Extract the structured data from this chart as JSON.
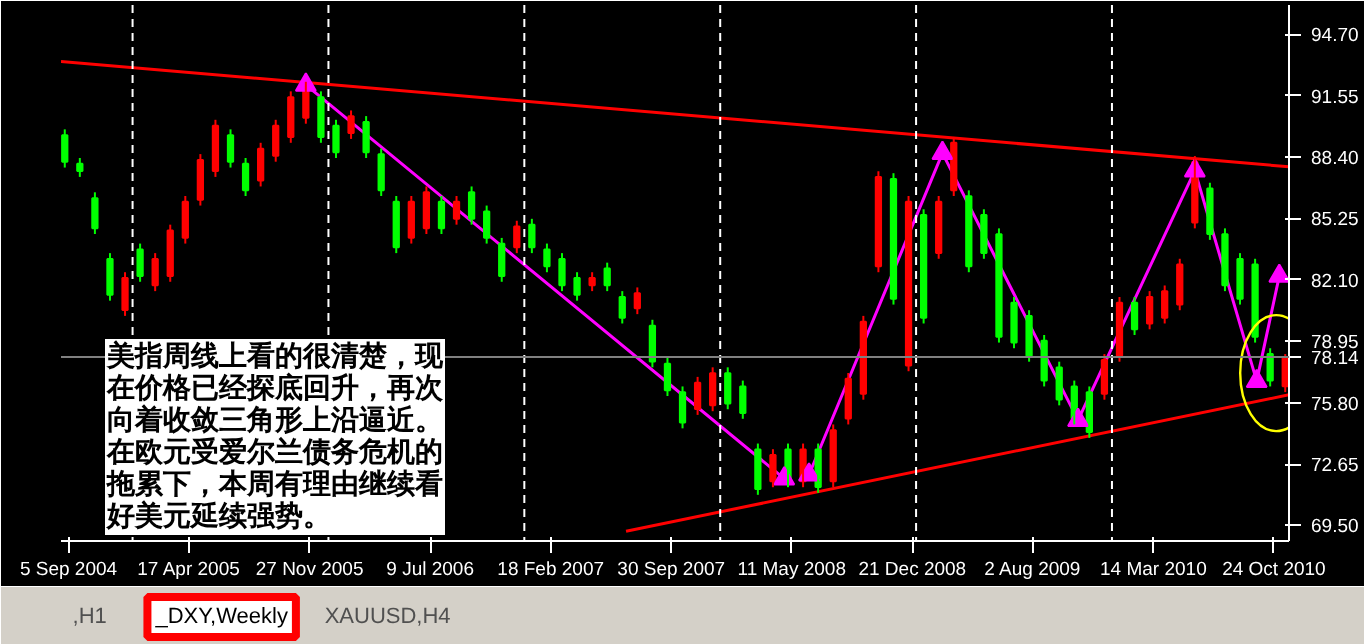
{
  "chart_data": {
    "type": "candlestick",
    "x": [
      "2004-08-29",
      "2004-09-26",
      "2004-10-24",
      "2004-11-21",
      "2004-12-19",
      "2005-01-16",
      "2005-02-13",
      "2005-03-13",
      "2005-04-10",
      "2005-05-08",
      "2005-06-05",
      "2005-07-03",
      "2005-07-31",
      "2005-08-28",
      "2005-09-25",
      "2005-10-23",
      "2005-11-20",
      "2005-12-18",
      "2006-01-15",
      "2006-02-12",
      "2006-03-12",
      "2006-04-09",
      "2006-05-07",
      "2006-06-04",
      "2006-07-02",
      "2006-07-30",
      "2006-08-27",
      "2006-09-24",
      "2006-10-22",
      "2006-11-19",
      "2006-12-17",
      "2007-01-14",
      "2007-02-11",
      "2007-03-11",
      "2007-04-08",
      "2007-05-06",
      "2007-06-03",
      "2007-07-01",
      "2007-07-29",
      "2007-08-26",
      "2007-09-23",
      "2007-10-21",
      "2007-11-18",
      "2007-12-16",
      "2008-01-13",
      "2008-02-10",
      "2008-03-09",
      "2008-04-06",
      "2008-05-04",
      "2008-06-01",
      "2008-06-29",
      "2008-07-27",
      "2008-08-24",
      "2008-09-21",
      "2008-10-19",
      "2008-11-16",
      "2008-12-14",
      "2009-01-11",
      "2009-02-08",
      "2009-03-08",
      "2009-04-05",
      "2009-05-03",
      "2009-05-31",
      "2009-06-28",
      "2009-07-26",
      "2009-08-23",
      "2009-09-20",
      "2009-10-18",
      "2009-11-15",
      "2009-12-13",
      "2010-01-10",
      "2010-02-07",
      "2010-03-07",
      "2010-04-04",
      "2010-05-02",
      "2010-05-30",
      "2010-06-27",
      "2010-07-25",
      "2010-08-22",
      "2010-09-19",
      "2010-10-17",
      "2010-11-14"
    ],
    "ohlc": [
      [
        89.52,
        89.82,
        87.86,
        88.16
      ],
      [
        88.05,
        88.35,
        87.38,
        87.68
      ],
      [
        86.29,
        86.59,
        84.45,
        84.75
      ],
      [
        83.17,
        83.47,
        81.03,
        81.33
      ],
      [
        80.55,
        82.49,
        80.25,
        82.19
      ],
      [
        83.66,
        83.96,
        82.0,
        82.3
      ],
      [
        81.82,
        83.47,
        81.52,
        83.17
      ],
      [
        82.3,
        84.93,
        82.0,
        84.63
      ],
      [
        84.26,
        86.4,
        83.96,
        86.1
      ],
      [
        86.21,
        88.55,
        85.91,
        88.25
      ],
      [
        87.68,
        90.31,
        87.38,
        90.01
      ],
      [
        89.52,
        89.82,
        87.86,
        88.16
      ],
      [
        88.05,
        88.35,
        86.4,
        86.7
      ],
      [
        87.19,
        89.13,
        86.89,
        88.83
      ],
      [
        88.46,
        90.31,
        88.16,
        90.01
      ],
      [
        89.43,
        91.77,
        89.13,
        91.47
      ],
      [
        90.41,
        92.26,
        90.11,
        91.96
      ],
      [
        91.47,
        91.77,
        89.13,
        89.43
      ],
      [
        90.01,
        90.31,
        88.35,
        88.65
      ],
      [
        89.63,
        90.79,
        89.33,
        90.49
      ],
      [
        90.2,
        90.5,
        88.35,
        88.65
      ],
      [
        88.54,
        88.84,
        86.4,
        86.7
      ],
      [
        86.1,
        86.4,
        83.47,
        83.77
      ],
      [
        84.26,
        86.4,
        83.96,
        86.1
      ],
      [
        84.75,
        86.89,
        84.45,
        86.59
      ],
      [
        86.1,
        86.4,
        84.45,
        84.75
      ],
      [
        85.23,
        86.4,
        84.93,
        86.1
      ],
      [
        86.59,
        86.89,
        84.93,
        85.23
      ],
      [
        85.61,
        85.91,
        83.96,
        84.26
      ],
      [
        83.95,
        84.25,
        82.0,
        82.3
      ],
      [
        83.77,
        85.13,
        83.47,
        84.83
      ],
      [
        84.93,
        85.23,
        83.47,
        83.77
      ],
      [
        83.66,
        83.96,
        82.49,
        82.79
      ],
      [
        83.17,
        83.47,
        81.52,
        81.82
      ],
      [
        82.19,
        82.49,
        81.03,
        81.33
      ],
      [
        81.82,
        82.49,
        81.52,
        82.19
      ],
      [
        82.68,
        82.98,
        81.52,
        81.82
      ],
      [
        81.22,
        81.52,
        79.86,
        80.16
      ],
      [
        80.64,
        81.71,
        80.34,
        81.41
      ],
      [
        79.75,
        80.05,
        77.61,
        77.91
      ],
      [
        77.8,
        78.1,
        76.14,
        76.44
      ],
      [
        76.33,
        76.63,
        74.48,
        74.78
      ],
      [
        75.47,
        77.12,
        75.17,
        76.82
      ],
      [
        75.66,
        77.61,
        75.36,
        77.31
      ],
      [
        77.31,
        77.61,
        75.46,
        75.76
      ],
      [
        76.63,
        76.93,
        74.97,
        75.27
      ],
      [
        73.4,
        73.7,
        71.07,
        71.37
      ],
      [
        71.76,
        73.41,
        71.46,
        73.11
      ],
      [
        73.4,
        73.7,
        71.46,
        71.76
      ],
      [
        71.76,
        73.7,
        71.46,
        73.4
      ],
      [
        73.4,
        73.7,
        71.17,
        71.47
      ],
      [
        71.76,
        74.68,
        71.46,
        74.38
      ],
      [
        74.98,
        77.32,
        74.68,
        77.02
      ],
      [
        76.25,
        80.25,
        75.95,
        79.95
      ],
      [
        82.79,
        87.67,
        82.49,
        87.37
      ],
      [
        87.27,
        87.57,
        80.83,
        81.13
      ],
      [
        77.71,
        86.4,
        77.41,
        86.1
      ],
      [
        85.42,
        85.72,
        79.86,
        80.16
      ],
      [
        83.48,
        86.4,
        83.18,
        86.1
      ],
      [
        86.7,
        89.43,
        86.4,
        89.13
      ],
      [
        86.39,
        86.69,
        82.49,
        82.79
      ],
      [
        85.42,
        85.72,
        83.18,
        83.48
      ],
      [
        84.44,
        84.74,
        78.88,
        79.18
      ],
      [
        80.92,
        81.22,
        78.59,
        78.89
      ],
      [
        80.24,
        80.54,
        77.9,
        78.2
      ],
      [
        78.97,
        79.27,
        76.63,
        76.93
      ],
      [
        77.6,
        77.9,
        75.66,
        75.96
      ],
      [
        76.63,
        76.93,
        74.68,
        74.98
      ],
      [
        76.33,
        76.63,
        73.99,
        74.29
      ],
      [
        76.25,
        78.29,
        75.95,
        77.99
      ],
      [
        78.2,
        81.22,
        77.9,
        80.92
      ],
      [
        80.92,
        81.22,
        79.27,
        79.57
      ],
      [
        79.86,
        81.52,
        79.56,
        81.22
      ],
      [
        80.16,
        81.81,
        79.86,
        81.51
      ],
      [
        80.84,
        83.18,
        80.54,
        82.88
      ],
      [
        85.04,
        88.45,
        84.74,
        88.15
      ],
      [
        86.78,
        87.08,
        84.15,
        84.45
      ],
      [
        84.44,
        84.74,
        81.52,
        81.82
      ],
      [
        83.17,
        83.47,
        80.83,
        81.13
      ],
      [
        82.88,
        83.18,
        78.88,
        79.18
      ],
      [
        78.29,
        78.59,
        76.63,
        76.93
      ],
      [
        76.64,
        78.29,
        76.34,
        78.14
      ]
    ],
    "colors": [
      "#00ff00",
      "#00ff00",
      "#00ff00",
      "#00ff00",
      "#ff0000",
      "#00ff00",
      "#ff0000",
      "#ff0000",
      "#ff0000",
      "#ff0000",
      "#ff0000",
      "#00ff00",
      "#00ff00",
      "#ff0000",
      "#ff0000",
      "#ff0000",
      "#ff0000",
      "#00ff00",
      "#00ff00",
      "#ff0000",
      "#00ff00",
      "#00ff00",
      "#00ff00",
      "#ff0000",
      "#ff0000",
      "#00ff00",
      "#ff0000",
      "#00ff00",
      "#00ff00",
      "#00ff00",
      "#ff0000",
      "#00ff00",
      "#00ff00",
      "#00ff00",
      "#00ff00",
      "#ff0000",
      "#00ff00",
      "#00ff00",
      "#ff0000",
      "#00ff00",
      "#00ff00",
      "#00ff00",
      "#ff0000",
      "#ff0000",
      "#00ff00",
      "#00ff00",
      "#00ff00",
      "#ff0000",
      "#00ff00",
      "#ff0000",
      "#00ff00",
      "#ff0000",
      "#ff0000",
      "#ff0000",
      "#ff0000",
      "#00ff00",
      "#ff0000",
      "#00ff00",
      "#ff0000",
      "#ff0000",
      "#00ff00",
      "#00ff00",
      "#00ff00",
      "#00ff00",
      "#00ff00",
      "#00ff00",
      "#00ff00",
      "#00ff00",
      "#00ff00",
      "#ff0000",
      "#ff0000",
      "#00ff00",
      "#ff0000",
      "#ff0000",
      "#ff0000",
      "#ff0000",
      "#00ff00",
      "#00ff00",
      "#00ff00",
      "#00ff00",
      "#00ff00",
      "#ff0000"
    ],
    "series": [
      {
        "type": "line",
        "color": "#ff0000",
        "x": [
          "2004-08-22",
          "2010-11-21"
        ],
        "values": [
          93.3,
          87.9
        ]
      },
      {
        "type": "line",
        "color": "#ff0000",
        "x": [
          "2007-07-08",
          "2010-11-21"
        ],
        "values": [
          69.2,
          76.2
        ]
      },
      {
        "type": "line",
        "color": "#ff00ff",
        "marker": "triangle",
        "x": [
          "2005-11-20",
          "2008-04-27",
          "2008-05-20",
          "2008-06-12",
          "2009-02-15",
          "2009-10-25",
          "2010-05-30",
          "2010-09-22",
          "2010-11-03"
        ],
        "values": [
          92.1,
          71.9,
          null,
          72.1,
          88.6,
          74.9,
          87.7,
          76.9,
          82.3
        ]
      }
    ],
    "xlim": [
      "2004-08-22",
      "2010-11-21"
    ],
    "xticks": [
      {
        "value": "2004-09-05",
        "label": "5 Sep 2004"
      },
      {
        "value": "2005-04-17",
        "label": "17 Apr 2005"
      },
      {
        "value": "2005-11-27",
        "label": "27 Nov 2005"
      },
      {
        "value": "2006-07-09",
        "label": "9 Jul 2006"
      },
      {
        "value": "2007-02-18",
        "label": "18 Feb 2007"
      },
      {
        "value": "2007-09-30",
        "label": "30 Sep 2007"
      },
      {
        "value": "2008-05-11",
        "label": "11 May 2008"
      },
      {
        "value": "2008-12-21",
        "label": "21 Dec 2008"
      },
      {
        "value": "2009-08-02",
        "label": "2 Aug 2009"
      },
      {
        "value": "2010-03-14",
        "label": "14 Mar 2010"
      },
      {
        "value": "2010-10-24",
        "label": "24 Oct 2010"
      }
    ],
    "ylim": [
      68.7,
      96.2
    ],
    "yticks": [
      {
        "value": 69.5,
        "label": "69.50"
      },
      {
        "value": 72.65,
        "label": "72.65"
      },
      {
        "value": 75.8,
        "label": "75.80"
      },
      {
        "value": 78.95,
        "label": "78.95"
      },
      {
        "value": 82.1,
        "label": "82.10"
      },
      {
        "value": 85.25,
        "label": "85.25"
      },
      {
        "value": 88.4,
        "label": "88.40"
      },
      {
        "value": 91.55,
        "label": "91.55"
      },
      {
        "value": 94.7,
        "label": "94.70"
      }
    ],
    "ref_lines": [
      {
        "axis": "x",
        "value": "2005-01-02",
        "color": "#ffffff",
        "line_style": "dashed"
      },
      {
        "axis": "x",
        "value": "2006-01-01",
        "color": "#ffffff",
        "line_style": "dashed"
      },
      {
        "axis": "x",
        "value": "2006-12-31",
        "color": "#ffffff",
        "line_style": "dashed"
      },
      {
        "axis": "x",
        "value": "2007-12-30",
        "color": "#ffffff",
        "line_style": "dashed"
      },
      {
        "axis": "x",
        "value": "2008-12-28",
        "color": "#ffffff",
        "line_style": "dashed"
      },
      {
        "axis": "x",
        "value": "2009-12-27",
        "color": "#ffffff",
        "line_style": "dashed"
      },
      {
        "axis": "y",
        "value": 78.14,
        "label": "78.14",
        "color": "#808080",
        "line_style": "solid"
      }
    ],
    "annotations": [
      "美指周线上看的很清楚，现在价格已经探底回升，再次向着收敛三角形上沿逼近。在欧元受爱尔兰债务危机的拖累下，本周有理由继续看好美元延续强势。",
      ",H1",
      "_DXY,Weekly",
      "XAUUSD,H4"
    ]
  }
}
